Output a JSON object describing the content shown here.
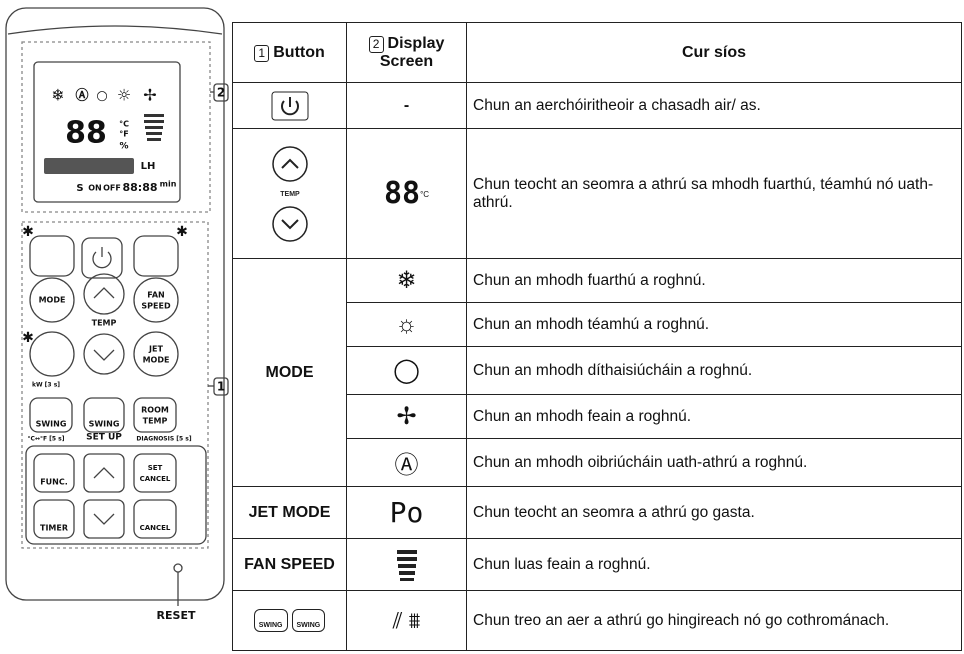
{
  "remote": {
    "display": {
      "digits": "88",
      "celsius": "°C",
      "fahrenheit": "°F",
      "percent": "%",
      "lh": "LH",
      "s": "S",
      "on": "ON",
      "off": "OFF",
      "clock": "88:88",
      "min": "min"
    },
    "buttons": {
      "mode": "MODE",
      "temp": "TEMP",
      "fan": "FAN",
      "speed": "SPEED",
      "jet": "JET",
      "jet_mode": "MODE",
      "kw": "kW [3 s]",
      "swing_1": "SWING",
      "swing_2": "SWING",
      "room": "ROOM",
      "room_temp": "TEMP",
      "unit_switch": "°C↔°F [5 s]",
      "set_up": "SET UP",
      "diagnosis": "DIAGNOSIS [5 s]",
      "func": "FUNC.",
      "set": "SET",
      "set_cancel": "CANCEL",
      "timer": "TIMER",
      "cancel": "CANCEL"
    },
    "reset": "RESET",
    "callouts": [
      "2",
      "1"
    ]
  },
  "table": {
    "header": [
      {
        "number": "1",
        "label": "Button"
      },
      {
        "number": "2",
        "label": "Display Screen"
      },
      "Cur síos"
    ],
    "rows": [
      {
        "display": "-",
        "description": "Chun an aerchóiritheoir a chasadh air/ as."
      },
      {
        "button": "TEMP",
        "display": "88",
        "display_unit": "°C",
        "description": "Chun teocht an seomra a athrú sa mhodh fuarthú, téamhú nó uath-athrú."
      },
      {
        "button": "MODE",
        "descriptions": [
          "Chun an mhodh fuarthú a roghnú.",
          "Chun an mhodh téamhú a roghnú.",
          "Chun an mhodh díthaisiúcháin a roghnú.",
          "Chun an mhodh feain a roghnú.",
          "Chun an mhodh oibriúcháin uath-athrú a roghnú."
        ]
      },
      {
        "button": "JET MODE",
        "display": "Po",
        "description": "Chun teocht an seomra a athrú go gasta."
      },
      {
        "button": "FAN SPEED",
        "description": "Chun luas feain a roghnú."
      },
      {
        "button": [
          "SWING",
          "SWING"
        ],
        "description": "Chun treo an aer a athrú go hingireach nó go cothrománach."
      }
    ]
  }
}
